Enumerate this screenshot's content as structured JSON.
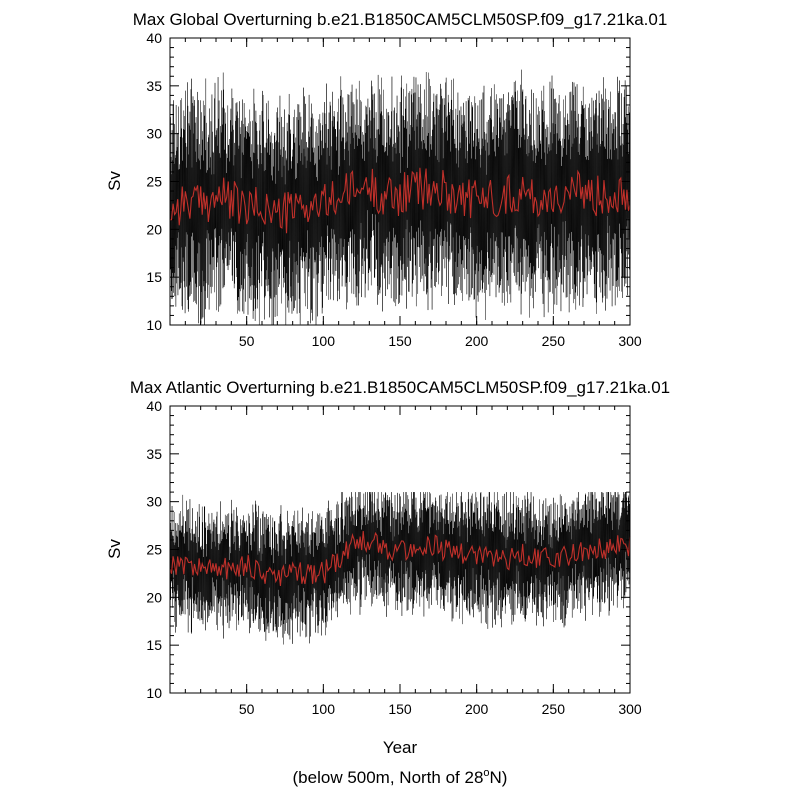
{
  "figure": {
    "note_prefix": "(below 500m, North of 28",
    "note_degree": "o",
    "note_suffix": "N)"
  },
  "chart_data": [
    {
      "type": "line",
      "title": "Max Global Overturning b.e21.B1850CAM5CLM50SP.f09_g17.21ka.01",
      "xlabel": "",
      "ylabel": "Sv",
      "xlim": [
        0,
        300
      ],
      "ylim": [
        10,
        40
      ],
      "x_ticks": [
        50,
        100,
        150,
        200,
        250,
        300
      ],
      "y_ticks": [
        10,
        15,
        20,
        25,
        30,
        35,
        40
      ],
      "grid": false,
      "series": [
        {
          "style": "raw-monthly",
          "color": "#000000",
          "stats": {
            "x_start": 0,
            "x_end": 300,
            "n": 1800,
            "center_mean": 23.5,
            "min_approx": 10,
            "max_approx": 40
          }
        },
        {
          "style": "annual-mean",
          "color": "#c0302a",
          "x": [
            0,
            10,
            20,
            30,
            40,
            50,
            60,
            70,
            80,
            90,
            100,
            110,
            120,
            130,
            140,
            150,
            160,
            170,
            180,
            190,
            200,
            210,
            220,
            230,
            240,
            250,
            260,
            270,
            280,
            290,
            300
          ],
          "values": [
            22.0,
            23.0,
            22.5,
            23.5,
            23.0,
            22.0,
            22.5,
            21.5,
            22.0,
            22.5,
            22.5,
            23.5,
            24.0,
            24.5,
            23.5,
            23.5,
            24.5,
            24.0,
            24.0,
            23.5,
            23.0,
            23.5,
            23.5,
            24.0,
            23.0,
            23.5,
            23.5,
            24.0,
            23.5,
            24.0,
            24.0
          ]
        }
      ]
    },
    {
      "type": "line",
      "title": "Max Atlantic Overturning b.e21.B1850CAM5CLM50SP.f09_g17.21ka.01",
      "xlabel": "Year",
      "ylabel": "Sv",
      "xlim": [
        0,
        300
      ],
      "ylim": [
        10,
        40
      ],
      "x_ticks": [
        50,
        100,
        150,
        200,
        250,
        300
      ],
      "y_ticks": [
        10,
        15,
        20,
        25,
        30,
        35,
        40
      ],
      "grid": false,
      "series": [
        {
          "style": "raw-monthly",
          "color": "#000000",
          "stats": {
            "x_start": 0,
            "x_end": 300,
            "n": 1800,
            "center_mean": 24.0,
            "min_approx": 11,
            "max_approx": 31
          }
        },
        {
          "style": "annual-mean",
          "color": "#c0302a",
          "x": [
            0,
            10,
            20,
            30,
            40,
            50,
            60,
            70,
            80,
            90,
            100,
            110,
            120,
            130,
            140,
            150,
            160,
            170,
            180,
            190,
            200,
            210,
            220,
            230,
            240,
            250,
            260,
            270,
            280,
            290,
            300
          ],
          "values": [
            23.5,
            23.5,
            23.0,
            23.0,
            23.0,
            23.5,
            22.5,
            22.0,
            22.5,
            22.5,
            22.5,
            24.0,
            25.5,
            26.0,
            25.0,
            25.0,
            25.0,
            25.5,
            25.0,
            24.5,
            24.5,
            24.0,
            24.0,
            24.5,
            24.0,
            24.0,
            24.5,
            25.0,
            25.0,
            25.5,
            25.5
          ]
        }
      ]
    }
  ]
}
